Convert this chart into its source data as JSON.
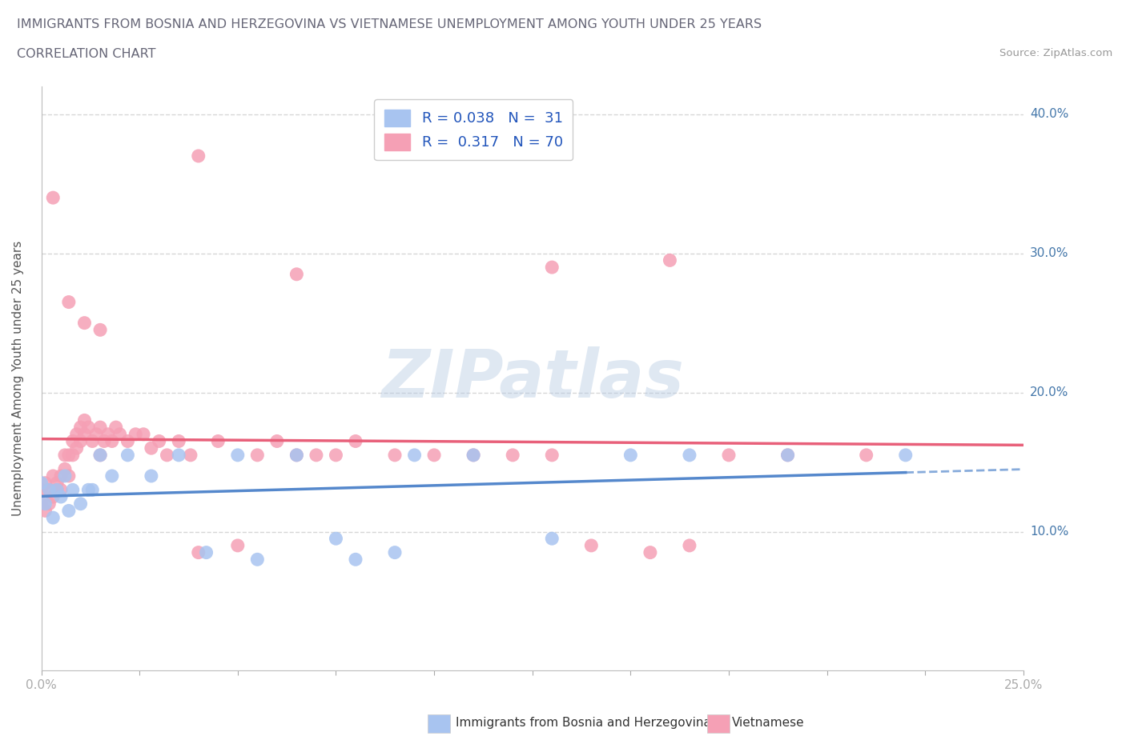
{
  "title_line1": "IMMIGRANTS FROM BOSNIA AND HERZEGOVINA VS VIETNAMESE UNEMPLOYMENT AMONG YOUTH UNDER 25 YEARS",
  "title_line2": "CORRELATION CHART",
  "source_text": "Source: ZipAtlas.com",
  "ylabel": "Unemployment Among Youth under 25 years",
  "xlim": [
    0.0,
    0.25
  ],
  "ylim": [
    0.0,
    0.42
  ],
  "color_bosnia": "#a8c4f0",
  "color_vietnam": "#f5a0b5",
  "trendline_color_bosnia": "#5588cc",
  "trendline_color_vietnam": "#e8607a",
  "watermark_text": "ZIPatlas",
  "legend_line1": "R = 0.038   N =  31",
  "legend_line2": "R =  0.317   N = 70",
  "bosnia_x": [
    0.0,
    0.001,
    0.002,
    0.003,
    0.004,
    0.005,
    0.006,
    0.007,
    0.008,
    0.01,
    0.012,
    0.013,
    0.015,
    0.018,
    0.022,
    0.028,
    0.035,
    0.042,
    0.05,
    0.055,
    0.065,
    0.075,
    0.08,
    0.09,
    0.095,
    0.11,
    0.13,
    0.15,
    0.165,
    0.19,
    0.22
  ],
  "bosnia_y": [
    0.135,
    0.12,
    0.13,
    0.11,
    0.13,
    0.125,
    0.14,
    0.115,
    0.13,
    0.12,
    0.13,
    0.13,
    0.155,
    0.14,
    0.155,
    0.14,
    0.155,
    0.085,
    0.155,
    0.08,
    0.155,
    0.095,
    0.08,
    0.085,
    0.155,
    0.155,
    0.095,
    0.155,
    0.155,
    0.155,
    0.155
  ],
  "vietnam_x": [
    0.0,
    0.0,
    0.001,
    0.001,
    0.002,
    0.002,
    0.003,
    0.003,
    0.004,
    0.004,
    0.005,
    0.005,
    0.006,
    0.006,
    0.007,
    0.007,
    0.008,
    0.008,
    0.009,
    0.009,
    0.01,
    0.01,
    0.011,
    0.011,
    0.012,
    0.013,
    0.014,
    0.015,
    0.015,
    0.016,
    0.017,
    0.018,
    0.019,
    0.02,
    0.022,
    0.024,
    0.026,
    0.028,
    0.03,
    0.032,
    0.035,
    0.038,
    0.04,
    0.045,
    0.05,
    0.055,
    0.06,
    0.065,
    0.07,
    0.075,
    0.08,
    0.09,
    0.1,
    0.11,
    0.12,
    0.13,
    0.14,
    0.155,
    0.165,
    0.175,
    0.19,
    0.21,
    0.04,
    0.065,
    0.13,
    0.16,
    0.003,
    0.007,
    0.011,
    0.015
  ],
  "vietnam_y": [
    0.12,
    0.13,
    0.135,
    0.115,
    0.13,
    0.12,
    0.14,
    0.125,
    0.135,
    0.13,
    0.14,
    0.13,
    0.155,
    0.145,
    0.155,
    0.14,
    0.165,
    0.155,
    0.17,
    0.16,
    0.165,
    0.175,
    0.18,
    0.17,
    0.175,
    0.165,
    0.17,
    0.175,
    0.155,
    0.165,
    0.17,
    0.165,
    0.175,
    0.17,
    0.165,
    0.17,
    0.17,
    0.16,
    0.165,
    0.155,
    0.165,
    0.155,
    0.085,
    0.165,
    0.09,
    0.155,
    0.165,
    0.155,
    0.155,
    0.155,
    0.165,
    0.155,
    0.155,
    0.155,
    0.155,
    0.155,
    0.09,
    0.085,
    0.09,
    0.155,
    0.155,
    0.155,
    0.37,
    0.285,
    0.29,
    0.295,
    0.34,
    0.265,
    0.25,
    0.245
  ]
}
